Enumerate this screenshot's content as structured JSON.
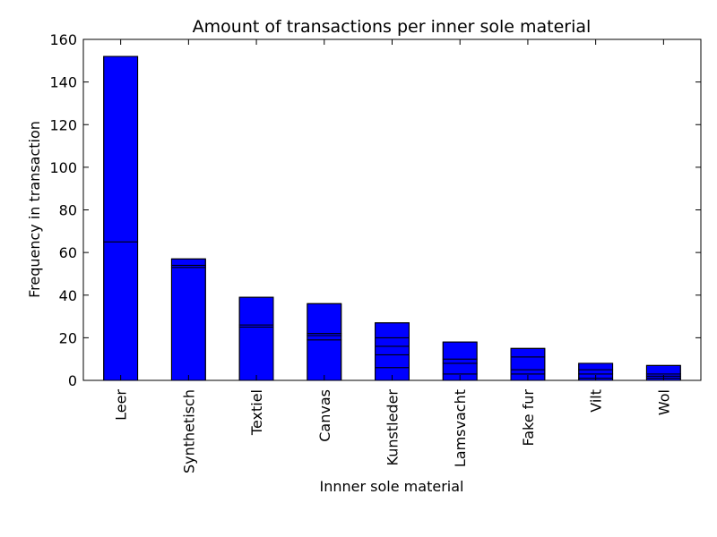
{
  "chart_data": {
    "type": "bar",
    "title": "Amount of transactions per inner sole material",
    "xlabel": "Innner sole material",
    "ylabel": "Frequency in transaction",
    "categories": [
      "Leer",
      "Synthetisch",
      "Textiel",
      "Canvas",
      "Kunstleder",
      "Lamsvacht",
      "Fake fur",
      "Vilt",
      "Wol"
    ],
    "values": [
      152,
      57,
      39,
      36,
      27,
      18,
      15,
      8,
      7
    ],
    "stack_segments": [
      [
        65,
        87
      ],
      [
        53,
        1,
        3
      ],
      [
        25,
        1,
        13
      ],
      [
        19,
        2,
        1,
        14
      ],
      [
        6,
        6,
        4,
        4,
        7
      ],
      [
        3,
        5,
        2,
        8
      ],
      [
        3,
        2,
        6,
        4
      ],
      [
        1,
        2,
        2,
        3
      ],
      [
        1,
        1,
        1,
        4
      ]
    ],
    "ylim": [
      0,
      160
    ],
    "yticks": [
      0,
      20,
      40,
      60,
      80,
      100,
      120,
      140,
      160
    ],
    "bar_color": "#0000ff",
    "grid": false,
    "legend": "none"
  }
}
